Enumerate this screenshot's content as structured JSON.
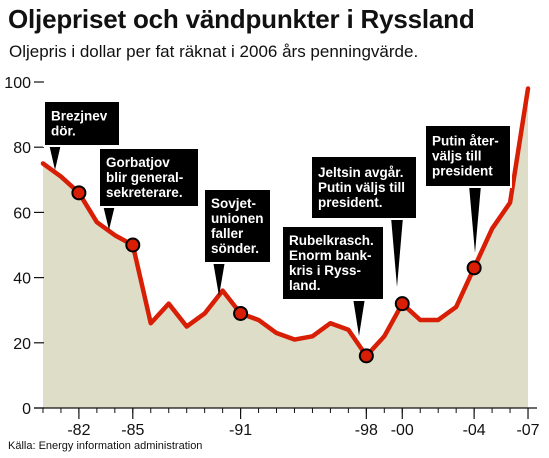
{
  "title": "Oljepriset och vändpunkter i Ryssland",
  "subtitle": "Oljepris i dollar per fat räknat i 2006 års penningvärde.",
  "source": "Källa: Energy information administration",
  "chart_data": {
    "type": "area",
    "title": "Oljepriset och vändpunkter i Ryssland",
    "subtitle": "Oljepris i dollar per fat räknat i 2006 års penningvärde.",
    "xlabel": "",
    "ylabel": "",
    "xlim": [
      1979.5,
      2007.5
    ],
    "ylim": [
      0,
      100
    ],
    "y_ticks": [
      0,
      20,
      40,
      60,
      80,
      100
    ],
    "x_ticks": [
      {
        "year": 1982,
        "label": "-82"
      },
      {
        "year": 1985,
        "label": "-85"
      },
      {
        "year": 1991,
        "label": "-91"
      },
      {
        "year": 1998,
        "label": "-98"
      },
      {
        "year": 2000,
        "label": "-00"
      },
      {
        "year": 2004,
        "label": "-04"
      },
      {
        "year": 2007,
        "label": "-07"
      }
    ],
    "grid": false,
    "fill_color": "#ddddc8",
    "line_color": "#d81e05",
    "series": [
      {
        "x": [
          1980,
          1981,
          1982,
          1983,
          1984,
          1985,
          1986,
          1987,
          1988,
          1989,
          1990,
          1991,
          1992,
          1993,
          1994,
          1995,
          1996,
          1997,
          1998,
          1999,
          2000,
          2001,
          2002,
          2003,
          2004,
          2005,
          2006,
          2007
        ],
        "y": [
          75,
          71,
          66,
          57,
          53,
          50,
          26,
          32,
          25,
          29,
          36,
          29,
          27,
          23,
          21,
          22,
          26,
          24,
          16,
          22,
          32,
          27,
          27,
          31,
          43,
          55,
          63,
          98
        ]
      }
    ],
    "annotations": [
      {
        "year": 1982,
        "value": 66,
        "text": [
          "Brezjnev",
          "dör."
        ]
      },
      {
        "year": 1985,
        "value": 50,
        "text": [
          "Gorbatjov",
          "blir general-",
          "sekreterare."
        ]
      },
      {
        "year": 1991,
        "value": 29,
        "text": [
          "Sovjet-",
          "unionen",
          "faller",
          "sönder."
        ]
      },
      {
        "year": 1998,
        "value": 16,
        "text": [
          "Rubelkrasch.",
          "Enorm bank-",
          "kris i Ryss-",
          "land."
        ]
      },
      {
        "year": 2000,
        "value": 32,
        "text": [
          "Jeltsin avgår.",
          "Putin väljs till",
          "president."
        ]
      },
      {
        "year": 2004,
        "value": 43,
        "text": [
          "Putin åter-",
          "väljs till",
          "president"
        ]
      }
    ]
  }
}
